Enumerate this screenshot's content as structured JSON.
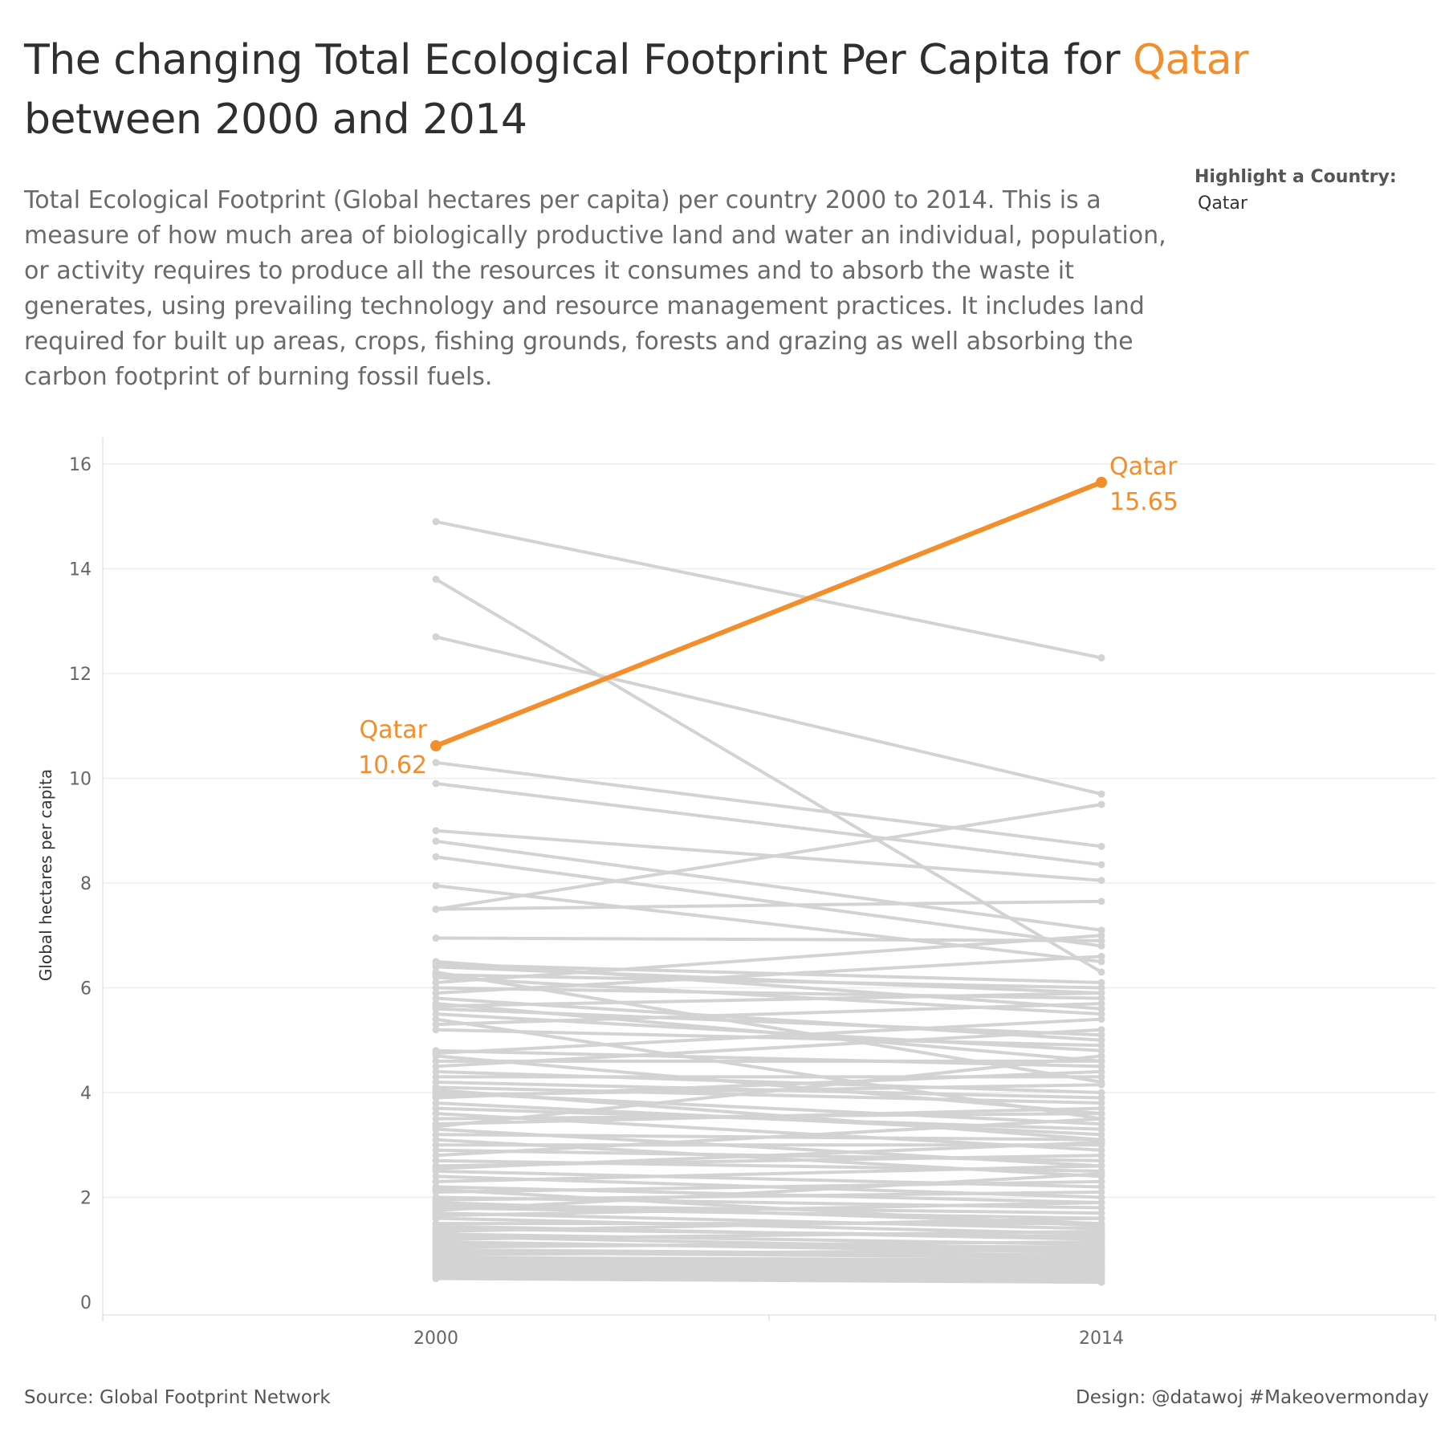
{
  "header": {
    "title_part1": "The changing Total Ecological Footprint Per Capita for ",
    "title_highlight": "Qatar",
    "title_part2": " between 2000 and 2014",
    "subtitle": "Total Ecological Footprint (Global hectares per capita) per country 2000 to 2014.  This is a measure of how much area of biologically productive land and water an individual, population, or activity requires to produce all the resources it consumes and to absorb the waste it generates, using prevailing technology and resource management practices.  It includes land required for built up areas, crops, fishing grounds, forests and grazing as well absorbing the carbon footprint of burning fossil fuels."
  },
  "filter": {
    "label": "Highlight a Country:",
    "value": "Qatar"
  },
  "footer": {
    "source": "Source: Global Footprint Network",
    "design": "Design: @datawoj #Makeovermonday"
  },
  "colors": {
    "highlight": "#f28e2b",
    "background_lines": "#d3d3d3",
    "gridline": "#eeeeee",
    "text": "#333333"
  },
  "chart_data": {
    "type": "line",
    "title": "",
    "xlabel": "",
    "ylabel": "Global hectares per capita",
    "x": [
      "2000",
      "2014"
    ],
    "ylim": [
      0,
      16.5
    ],
    "yticks": [
      0,
      2,
      4,
      6,
      8,
      10,
      12,
      14,
      16
    ],
    "grid": true,
    "highlight": {
      "name": "Qatar",
      "values": [
        10.62,
        15.65
      ],
      "start_label": "10.62",
      "end_label": "15.65"
    },
    "background_series": [
      [
        14.9,
        12.3
      ],
      [
        13.8,
        6.3
      ],
      [
        12.7,
        9.7
      ],
      [
        10.3,
        8.7
      ],
      [
        9.9,
        8.35
      ],
      [
        9.0,
        8.05
      ],
      [
        8.8,
        7.1
      ],
      [
        8.5,
        6.8
      ],
      [
        7.95,
        6.5
      ],
      [
        7.5,
        9.5
      ],
      [
        7.5,
        7.65
      ],
      [
        6.95,
        6.9
      ],
      [
        6.5,
        5.6
      ],
      [
        6.45,
        6.1
      ],
      [
        6.4,
        5.9
      ],
      [
        6.3,
        4.2
      ],
      [
        6.25,
        6.0
      ],
      [
        6.2,
        5.5
      ],
      [
        6.1,
        7.0
      ],
      [
        6.0,
        5.8
      ],
      [
        5.9,
        6.6
      ],
      [
        5.8,
        5.0
      ],
      [
        5.7,
        4.6
      ],
      [
        5.65,
        5.9
      ],
      [
        5.6,
        5.1
      ],
      [
        5.5,
        4.8
      ],
      [
        5.4,
        3.5
      ],
      [
        5.3,
        5.7
      ],
      [
        5.2,
        4.9
      ],
      [
        4.8,
        4.5
      ],
      [
        4.7,
        3.6
      ],
      [
        4.6,
        4.6
      ],
      [
        4.5,
        5.2
      ],
      [
        4.4,
        4.0
      ],
      [
        4.3,
        4.3
      ],
      [
        4.2,
        3.9
      ],
      [
        4.1,
        3.8
      ],
      [
        4.0,
        3.4
      ],
      [
        3.9,
        4.4
      ],
      [
        3.8,
        3.2
      ],
      [
        3.7,
        3.3
      ],
      [
        3.6,
        2.9
      ],
      [
        3.5,
        3.6
      ],
      [
        3.4,
        3.7
      ],
      [
        3.3,
        2.6
      ],
      [
        3.2,
        3.1
      ],
      [
        3.1,
        2.4
      ],
      [
        3.0,
        3.0
      ],
      [
        2.9,
        2.7
      ],
      [
        2.8,
        3.5
      ],
      [
        2.7,
        2.5
      ],
      [
        2.6,
        2.8
      ],
      [
        2.5,
        2.2
      ],
      [
        2.4,
        2.0
      ],
      [
        2.3,
        2.6
      ],
      [
        2.2,
        1.9
      ],
      [
        2.1,
        2.3
      ],
      [
        2.0,
        1.8
      ],
      [
        1.95,
        2.1
      ],
      [
        1.9,
        1.5
      ],
      [
        1.85,
        1.7
      ],
      [
        1.8,
        1.6
      ],
      [
        1.7,
        1.4
      ],
      [
        1.65,
        1.9
      ],
      [
        1.6,
        1.3
      ],
      [
        1.5,
        1.5
      ],
      [
        1.45,
        1.2
      ],
      [
        1.4,
        1.25
      ],
      [
        1.35,
        1.6
      ],
      [
        1.3,
        1.1
      ],
      [
        1.25,
        1.0
      ],
      [
        1.2,
        1.35
      ],
      [
        1.15,
        0.95
      ],
      [
        1.1,
        1.05
      ],
      [
        1.05,
        1.15
      ],
      [
        1.0,
        0.9
      ],
      [
        0.95,
        0.85
      ],
      [
        0.9,
        1.0
      ],
      [
        0.85,
        0.8
      ],
      [
        0.8,
        0.75
      ],
      [
        0.75,
        0.7
      ],
      [
        0.7,
        0.65
      ],
      [
        0.65,
        0.6
      ],
      [
        0.6,
        0.55
      ],
      [
        0.55,
        0.5
      ],
      [
        0.5,
        0.45
      ],
      [
        0.48,
        0.4
      ],
      [
        0.45,
        0.38
      ],
      [
        4.75,
        5.4
      ],
      [
        3.95,
        4.15
      ],
      [
        2.55,
        3.05
      ],
      [
        1.75,
        2.45
      ],
      [
        3.35,
        4.7
      ],
      [
        2.15,
        1.45
      ],
      [
        4.05,
        3.1
      ]
    ]
  }
}
